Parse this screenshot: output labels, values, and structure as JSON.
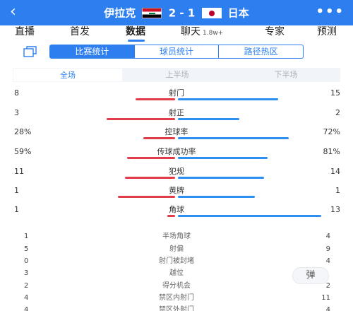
{
  "header": {
    "back_icon": "chevron-left-icon",
    "home_team": "伊拉克",
    "away_team": "日本",
    "score": "2 - 1",
    "more_icon": "more-icon",
    "home_flag": "iraq-flag",
    "away_flag": "japan-flag"
  },
  "tabs": [
    {
      "label": "直播"
    },
    {
      "label": "首发"
    },
    {
      "label": "数据"
    },
    {
      "label": "聊天",
      "badge": "1.8w+"
    },
    {
      "label": "专家"
    },
    {
      "label": "预测"
    }
  ],
  "subtabs": [
    "比赛统计",
    "球员统计",
    "路径热区"
  ],
  "periods": [
    "全场",
    "上半场",
    "下半场"
  ],
  "stats": [
    {
      "name": "射门",
      "left": "8",
      "right": "15",
      "lfrac": 0.35,
      "rfrac": 0.65
    },
    {
      "name": "射正",
      "left": "3",
      "right": "2",
      "lfrac": 0.6,
      "rfrac": 0.4
    },
    {
      "name": "控球率",
      "left": "28%",
      "right": "72%",
      "lfrac": 0.28,
      "rfrac": 0.72
    },
    {
      "name": "传球成功率",
      "left": "59%",
      "right": "81%",
      "lfrac": 0.42,
      "rfrac": 0.58
    },
    {
      "name": "犯规",
      "left": "11",
      "right": "14",
      "lfrac": 0.44,
      "rfrac": 0.56
    },
    {
      "name": "黄牌",
      "left": "1",
      "right": "1",
      "lfrac": 0.5,
      "rfrac": 0.5
    },
    {
      "name": "角球",
      "left": "1",
      "right": "13",
      "lfrac": 0.07,
      "rfrac": 0.93
    }
  ],
  "simple_stats": [
    {
      "name": "半场角球",
      "left": "1",
      "right": "4"
    },
    {
      "name": "射偏",
      "left": "5",
      "right": "9"
    },
    {
      "name": "射门被封堵",
      "left": "0",
      "right": "4"
    },
    {
      "name": "越位",
      "left": "3",
      "right": ""
    },
    {
      "name": "得分机会",
      "left": "2",
      "right": "2"
    },
    {
      "name": "禁区内射门",
      "left": "4",
      "right": "11"
    },
    {
      "name": "禁区外射门",
      "left": "4",
      "right": "4"
    }
  ],
  "bubble_label": "弹",
  "colors": {
    "primary": "#2d7ff0",
    "home_bar": "#e03c4a",
    "away_bar": "#2d8ff0"
  }
}
